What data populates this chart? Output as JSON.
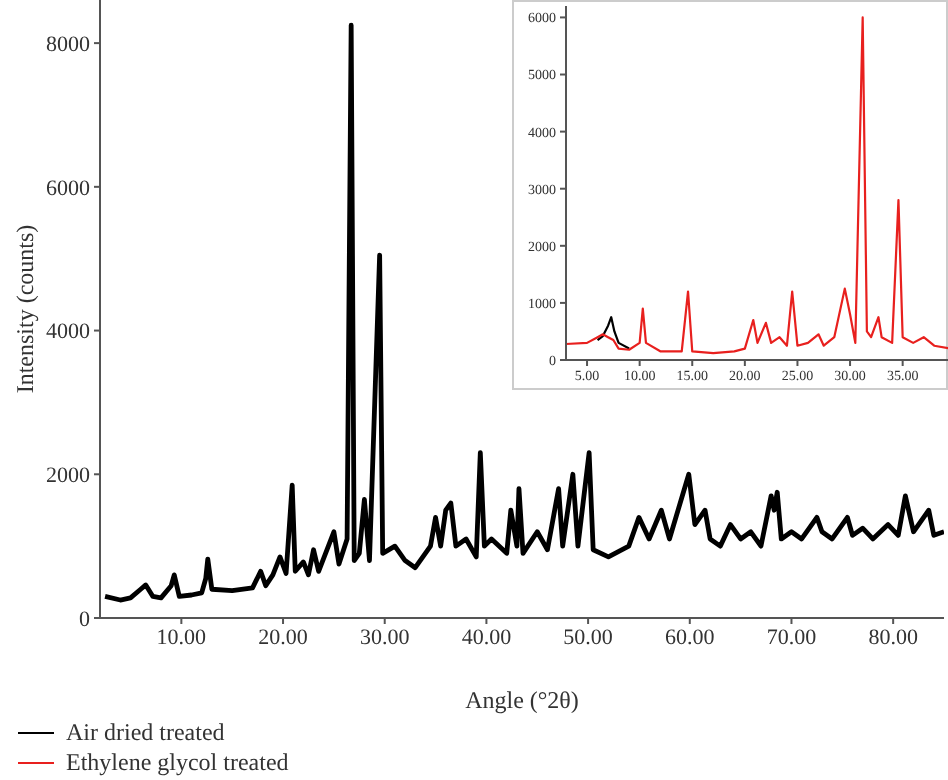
{
  "chart_data": [
    {
      "type": "line",
      "xlabel": "Angle (°2θ)",
      "ylabel": "Intensity (counts)",
      "xlim": [
        2,
        85
      ],
      "ylim": [
        0,
        8600
      ],
      "xticks": [
        {
          "value": 10,
          "label": "10.00"
        },
        {
          "value": 20,
          "label": "20.00"
        },
        {
          "value": 30,
          "label": "30.00"
        },
        {
          "value": 40,
          "label": "40.00"
        },
        {
          "value": 50,
          "label": "50.00"
        },
        {
          "value": 60,
          "label": "60.00"
        },
        {
          "value": 70,
          "label": "70.00"
        },
        {
          "value": 80,
          "label": "80.00"
        }
      ],
      "yticks": [
        0,
        2000,
        4000,
        6000,
        8000
      ],
      "grid": false,
      "marker": "none",
      "line_style": "solid",
      "series": [
        {
          "color": "#000000",
          "x": [
            2.5,
            4,
            5,
            6,
            6.5,
            7.2,
            8,
            9,
            9.3,
            9.8,
            11,
            12,
            12.4,
            12.6,
            13,
            15,
            17,
            17.8,
            18.3,
            19,
            19.7,
            20.3,
            20.9,
            21.2,
            22,
            22.5,
            23,
            23.5,
            25,
            25.5,
            26.3,
            26.7,
            27,
            27.5,
            28,
            28.5,
            29.5,
            29.8,
            31,
            32,
            33,
            34.5,
            35,
            35.5,
            36,
            36.5,
            37,
            38,
            39,
            39.4,
            39.8,
            40.5,
            42,
            42.4,
            43,
            43.2,
            43.6,
            45,
            46,
            47.1,
            47.5,
            48.5,
            49,
            50.1,
            50.5,
            52,
            54,
            55,
            56,
            57.2,
            58,
            59.9,
            60.5,
            61.5,
            62,
            63,
            64,
            65,
            66,
            67,
            68,
            68.3,
            68.6,
            69,
            70,
            71,
            72.5,
            73,
            74,
            75.5,
            76,
            77,
            78,
            79.5,
            80.5,
            81.2,
            82,
            83.5,
            84,
            85
          ],
          "values": [
            300,
            250,
            280,
            400,
            460,
            300,
            280,
            450,
            600,
            300,
            320,
            350,
            550,
            820,
            400,
            380,
            420,
            650,
            450,
            600,
            850,
            620,
            1850,
            650,
            780,
            600,
            950,
            650,
            1200,
            750,
            1100,
            8250,
            800,
            900,
            1650,
            800,
            5050,
            900,
            1000,
            800,
            700,
            1000,
            1400,
            1000,
            1500,
            1600,
            1000,
            1100,
            850,
            2300,
            1000,
            1100,
            900,
            1500,
            1000,
            1800,
            900,
            1200,
            950,
            1800,
            1000,
            2000,
            1000,
            2300,
            950,
            850,
            1000,
            1400,
            1100,
            1500,
            1100,
            2000,
            1300,
            1500,
            1100,
            1000,
            1300,
            1100,
            1200,
            1000,
            1700,
            1500,
            1750,
            1100,
            1200,
            1100,
            1400,
            1200,
            1100,
            1400,
            1150,
            1250,
            1100,
            1300,
            1150,
            1700,
            1200,
            1500,
            1150,
            1200
          ]
        }
      ]
    },
    {
      "type": "line",
      "xlim": [
        3,
        39.5
      ],
      "ylim": [
        0,
        6200
      ],
      "xticks": [
        {
          "value": 5,
          "label": "5.00"
        },
        {
          "value": 10,
          "label": "10.00"
        },
        {
          "value": 15,
          "label": "15.00"
        },
        {
          "value": 20,
          "label": "20.00"
        },
        {
          "value": 25,
          "label": "25.00"
        },
        {
          "value": 30,
          "label": "30.00"
        },
        {
          "value": 35,
          "label": "35.00"
        }
      ],
      "yticks": [
        0,
        1000,
        2000,
        3000,
        4000,
        5000,
        6000
      ],
      "grid": false,
      "marker": "none",
      "line_style": "solid",
      "legend": "bottom",
      "series": [
        {
          "name": "Air dried treated",
          "color": "#000000",
          "x": [
            6,
            6.5,
            7,
            7.3,
            7.6,
            8,
            9
          ],
          "values": [
            350,
            420,
            600,
            750,
            500,
            300,
            200
          ]
        },
        {
          "name": "Ethylene glycol treated",
          "color": "#e8201e",
          "x": [
            3,
            5,
            6,
            6.5,
            7,
            7.5,
            8,
            9,
            10,
            10.3,
            10.6,
            12,
            14,
            14.6,
            15,
            17,
            19,
            20,
            20.8,
            21.2,
            22,
            22.5,
            23.3,
            24,
            24.5,
            25,
            26,
            27,
            27.5,
            28.5,
            29.5,
            30,
            30.5,
            31.2,
            31.6,
            32,
            32.7,
            33,
            34,
            34.6,
            35,
            36,
            37,
            38,
            39.5
          ],
          "values": [
            280,
            300,
            400,
            450,
            400,
            350,
            200,
            180,
            300,
            900,
            300,
            150,
            150,
            1200,
            150,
            120,
            150,
            200,
            700,
            300,
            650,
            300,
            400,
            250,
            1200,
            250,
            300,
            450,
            250,
            400,
            1250,
            800,
            300,
            6000,
            500,
            400,
            750,
            400,
            300,
            2800,
            400,
            300,
            400,
            250,
            200
          ]
        }
      ]
    }
  ]
}
